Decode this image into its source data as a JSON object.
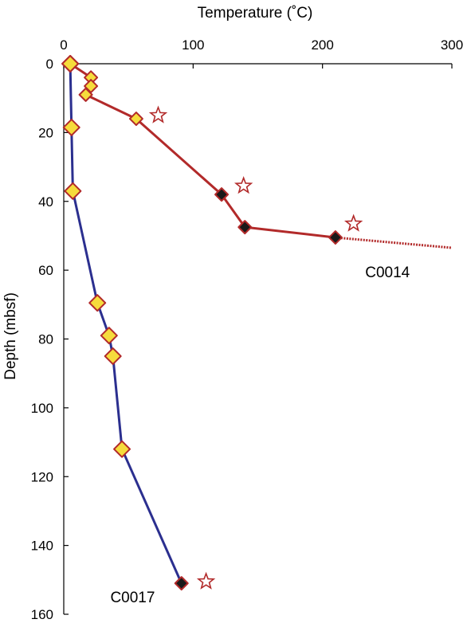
{
  "chart_data": {
    "type": "line",
    "title": "",
    "xlabel": "Temperature (˚C)",
    "ylabel": "Depth (mbsf)",
    "xlim": [
      0,
      300
    ],
    "ylim": [
      0,
      160
    ],
    "x_axis_position": "top",
    "y_inverted": true,
    "grid": false,
    "xticks": [
      0,
      100,
      200,
      300
    ],
    "yticks": [
      0,
      20,
      40,
      60,
      80,
      100,
      120,
      140,
      160
    ],
    "series": [
      {
        "name": "C0014",
        "color": "#b22a2a",
        "points": [
          {
            "x": 5,
            "y": 0,
            "marker": "yellow-diamond"
          },
          {
            "x": 21,
            "y": 4,
            "marker": "yellow-diamond"
          },
          {
            "x": 21,
            "y": 6.5,
            "marker": "yellow-diamond"
          },
          {
            "x": 17,
            "y": 9,
            "marker": "yellow-diamond"
          },
          {
            "x": 56,
            "y": 16,
            "marker": "yellow-diamond"
          },
          {
            "x": 122,
            "y": 38,
            "marker": "black-diamond"
          },
          {
            "x": 140,
            "y": 47.5,
            "marker": "black-diamond"
          },
          {
            "x": 210,
            "y": 50.5,
            "marker": "black-diamond"
          }
        ],
        "extrapolation": {
          "x": 300,
          "y": 53.5,
          "style": "dotted"
        },
        "stars": [
          {
            "x": 73,
            "y": 15
          },
          {
            "x": 139,
            "y": 35.5
          },
          {
            "x": 224,
            "y": 46.5
          }
        ]
      },
      {
        "name": "C0017",
        "color": "#2b2f8f",
        "points": [
          {
            "x": 5,
            "y": 0,
            "marker": "yellow-diamond"
          },
          {
            "x": 6,
            "y": 18.5,
            "marker": "yellow-diamond"
          },
          {
            "x": 7,
            "y": 37,
            "marker": "yellow-diamond"
          },
          {
            "x": 26,
            "y": 69.5,
            "marker": "yellow-diamond"
          },
          {
            "x": 35,
            "y": 79,
            "marker": "yellow-diamond"
          },
          {
            "x": 38,
            "y": 85,
            "marker": "yellow-diamond"
          },
          {
            "x": 45,
            "y": 112,
            "marker": "yellow-diamond"
          },
          {
            "x": 91,
            "y": 151,
            "marker": "black-diamond"
          }
        ],
        "stars": [
          {
            "x": 110,
            "y": 150.5
          }
        ]
      }
    ],
    "annotations": [
      {
        "text": "C0014",
        "x": 233,
        "y": 62
      },
      {
        "text": "C0017",
        "x": 36,
        "y": 156.5
      }
    ]
  }
}
